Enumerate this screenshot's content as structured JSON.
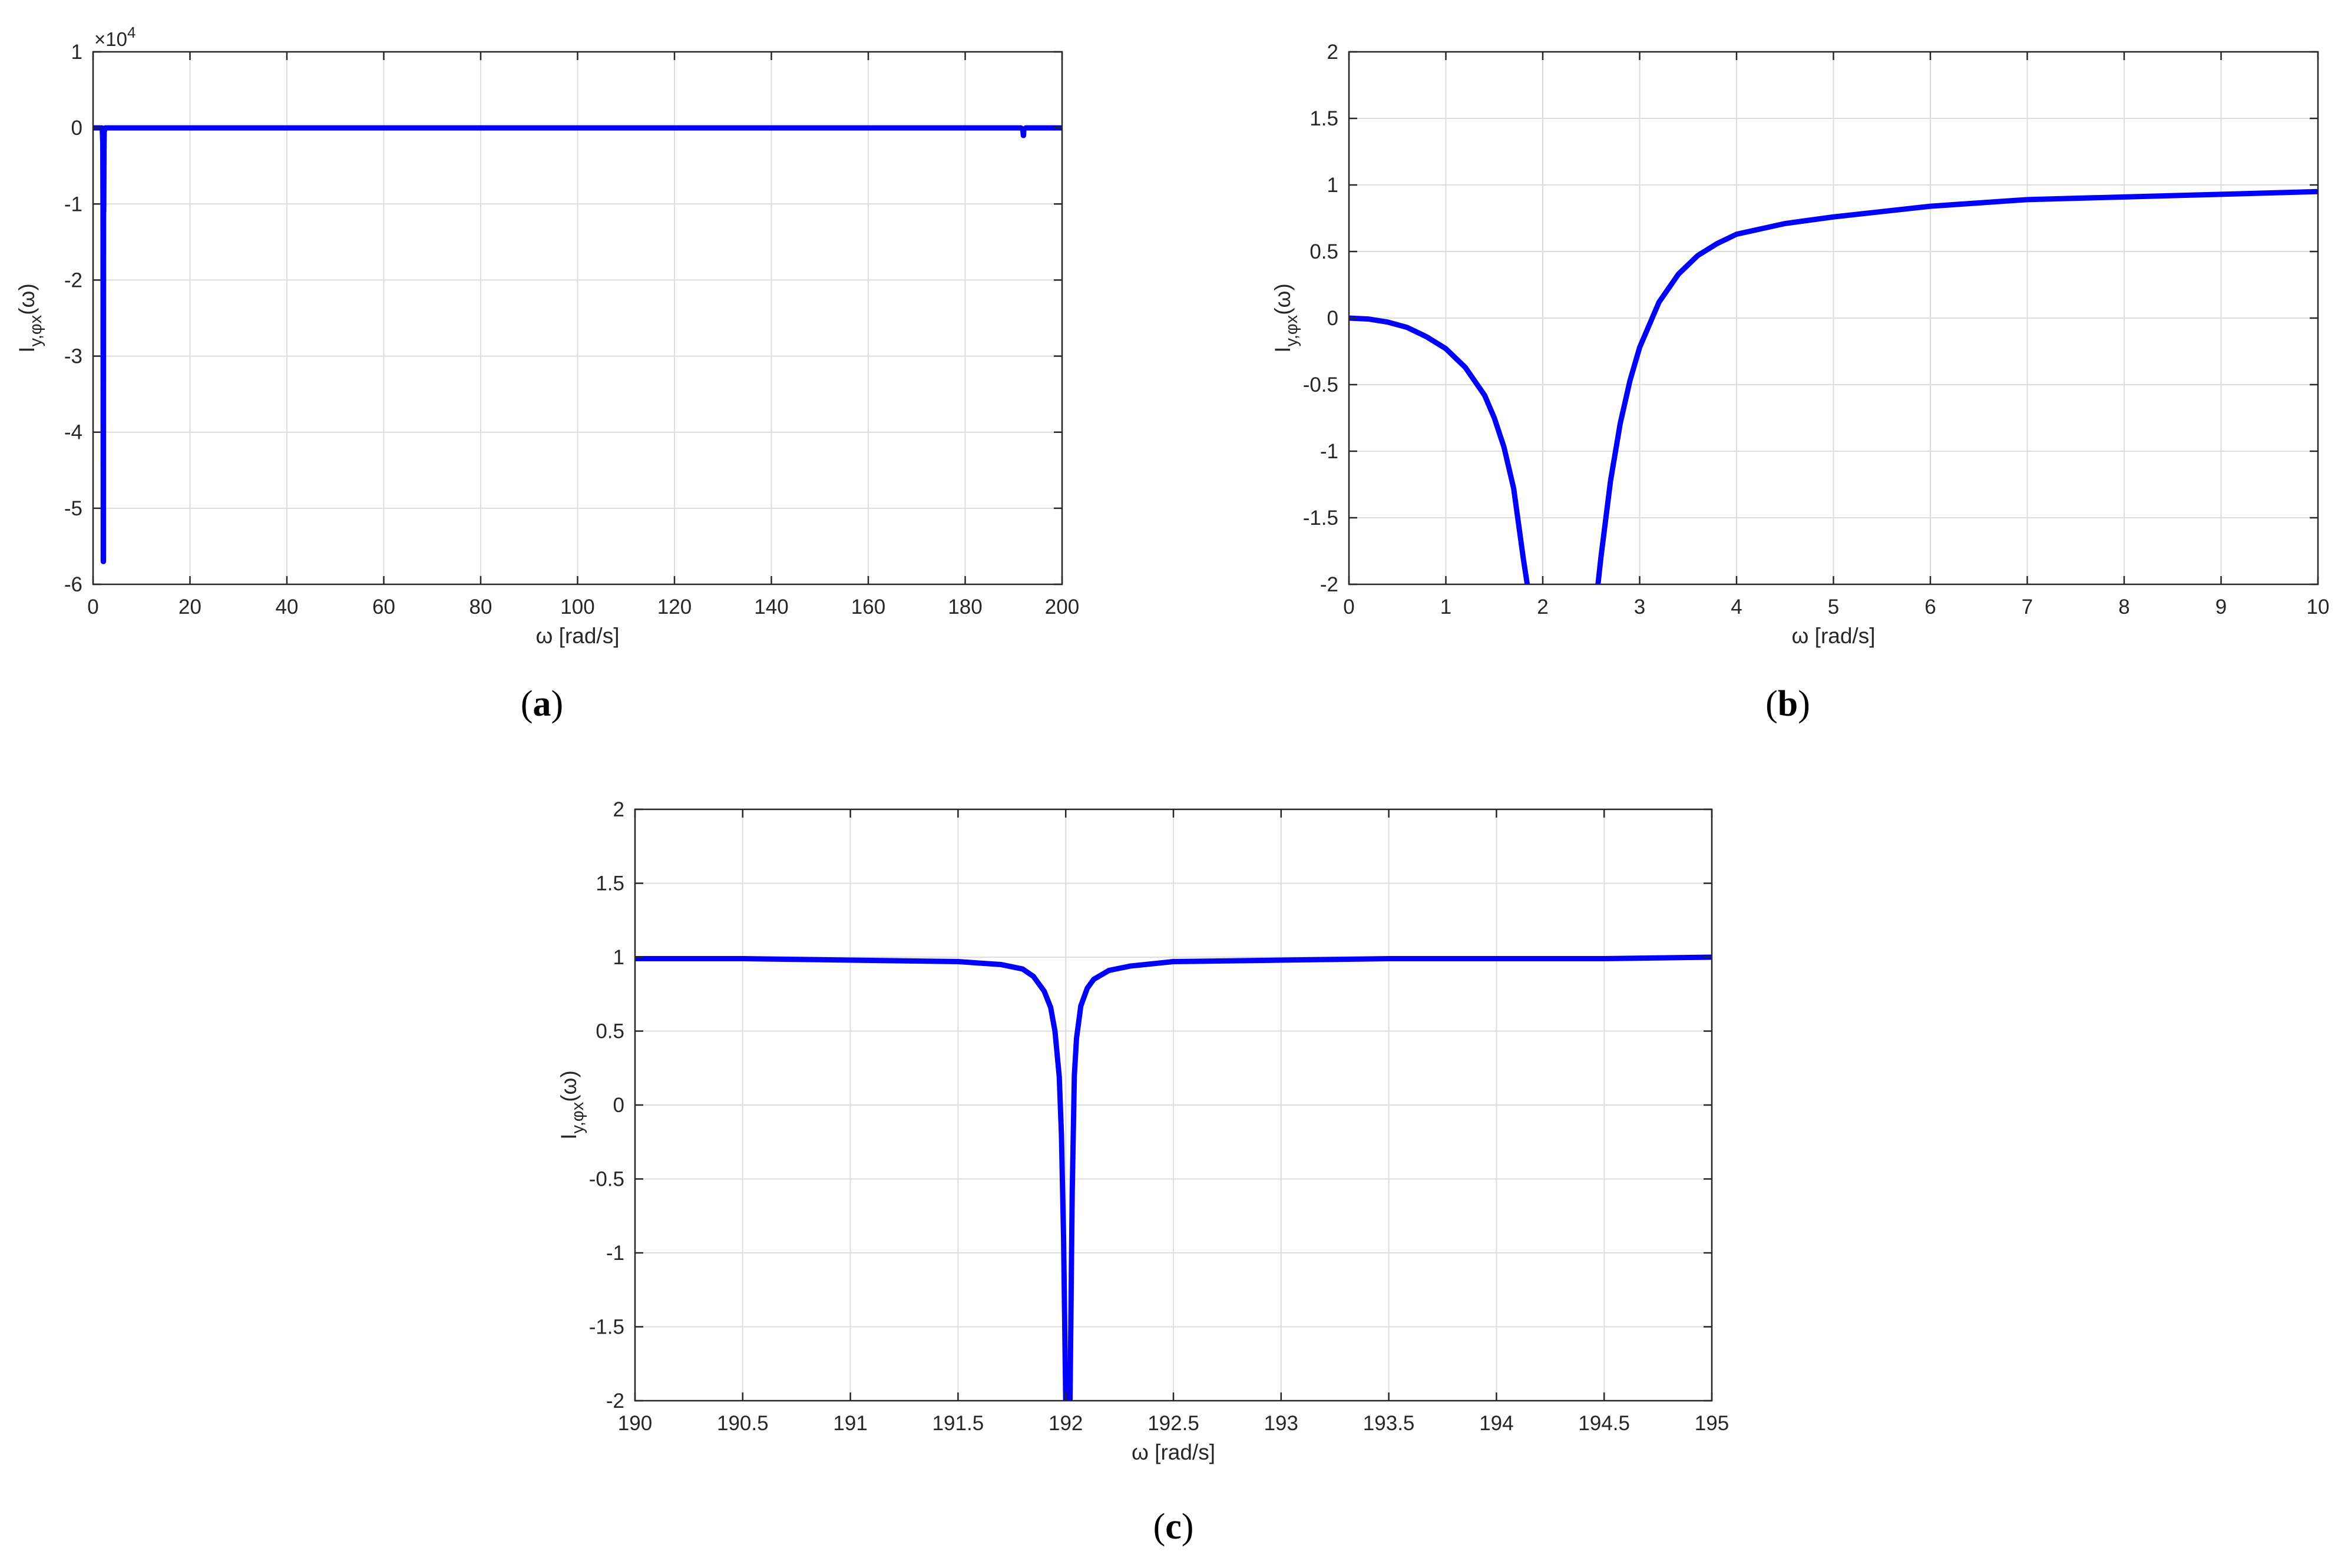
{
  "chart_data": [
    {
      "id": "a",
      "type": "line",
      "panel_label": "a",
      "xlabel": "ω [rad/s]",
      "ylabel": "I_{y,φx}(ω)",
      "xlim": [
        0,
        200
      ],
      "ylim": [
        -6,
        1
      ],
      "y_multiplier": "×10^4",
      "xticks": [
        "0",
        "20",
        "40",
        "60",
        "80",
        "100",
        "120",
        "140",
        "160",
        "180",
        "200"
      ],
      "yticks": [
        "1",
        "0",
        "-1",
        "-2",
        "-3",
        "-4",
        "-5",
        "-6"
      ],
      "grid": true,
      "line_color": "#0000ff",
      "series": [
        {
          "x": [
            0,
            1.8,
            1.9,
            2.0,
            2.05,
            2.1,
            2.15,
            2.17,
            2.2,
            2.25,
            2.3,
            2.5,
            3,
            10,
            50,
            100,
            150,
            191.5,
            191.9,
            192.0,
            192.05,
            192.1,
            192.5,
            200
          ],
          "values": [
            0,
            0,
            -0.02,
            -0.2,
            -1.1,
            -5.7,
            -5.7,
            -1.1,
            -1.1,
            -0.3,
            -0.05,
            0,
            0,
            0,
            0,
            0,
            0,
            0,
            -0.02,
            -0.1,
            -0.1,
            -0.02,
            0,
            0
          ]
        }
      ]
    },
    {
      "id": "b",
      "type": "line",
      "panel_label": "b",
      "xlabel": "ω [rad/s]",
      "ylabel": "I_{y,φx}(ω)",
      "xlim": [
        0,
        10
      ],
      "ylim": [
        -2,
        2
      ],
      "xticks": [
        "0",
        "1",
        "2",
        "3",
        "4",
        "5",
        "6",
        "7",
        "8",
        "9",
        "10"
      ],
      "yticks": [
        "2",
        "1.5",
        "1",
        "0.5",
        "0",
        "-0.5",
        "-1",
        "-1.5",
        "-2"
      ],
      "grid": true,
      "line_color": "#0000ff",
      "series": [
        {
          "segments": [
            {
              "x": [
                0,
                0.2,
                0.4,
                0.6,
                0.8,
                1.0,
                1.2,
                1.4,
                1.5,
                1.6,
                1.7,
                1.8,
                1.84
              ],
              "values": [
                0,
                -0.007,
                -0.03,
                -0.07,
                -0.14,
                -0.23,
                -0.37,
                -0.58,
                -0.75,
                -0.97,
                -1.28,
                -1.81,
                -2.0
              ]
            },
            {
              "x": [
                2.57,
                2.6,
                2.7,
                2.8,
                2.9,
                3.0,
                3.2,
                3.4,
                3.6,
                3.8,
                4.0,
                4.5,
                5.0,
                6.0,
                7.0,
                8.0,
                9.0,
                10.0
              ],
              "values": [
                -2.0,
                -1.8,
                -1.22,
                -0.79,
                -0.47,
                -0.22,
                0.12,
                0.33,
                0.47,
                0.56,
                0.63,
                0.71,
                0.76,
                0.84,
                0.89,
                0.91,
                0.93,
                0.95
              ]
            }
          ]
        }
      ]
    },
    {
      "id": "c",
      "type": "line",
      "panel_label": "c",
      "xlabel": "ω [rad/s]",
      "ylabel": "I_{y,φx}(ω)",
      "xlim": [
        190,
        195
      ],
      "ylim": [
        -2,
        2
      ],
      "xticks": [
        "190",
        "190.5",
        "191",
        "191.5",
        "192",
        "192.5",
        "193",
        "193.5",
        "194",
        "194.5",
        "195"
      ],
      "yticks": [
        "2",
        "1.5",
        "1",
        "0.5",
        "0",
        "-0.5",
        "-1",
        "-1.5",
        "-2"
      ],
      "grid": true,
      "line_color": "#0000ff",
      "series": [
        {
          "segments": [
            {
              "x": [
                190.0,
                190.5,
                191.0,
                191.5,
                191.7,
                191.8,
                191.85,
                191.9,
                191.93,
                191.95,
                191.97,
                191.98,
                191.99,
                192.0
              ],
              "values": [
                0.99,
                0.99,
                0.98,
                0.97,
                0.95,
                0.92,
                0.87,
                0.77,
                0.66,
                0.5,
                0.19,
                -0.2,
                -0.9,
                -2.0
              ]
            },
            {
              "x": [
                192.02,
                192.03,
                192.04,
                192.05,
                192.07,
                192.1,
                192.13,
                192.2,
                192.3,
                192.5,
                193.0,
                193.5,
                194.0,
                194.5,
                195.0
              ],
              "values": [
                -2.0,
                -0.6,
                0.2,
                0.45,
                0.67,
                0.79,
                0.85,
                0.91,
                0.94,
                0.97,
                0.98,
                0.99,
                0.99,
                0.99,
                1.0
              ]
            }
          ]
        }
      ]
    }
  ]
}
